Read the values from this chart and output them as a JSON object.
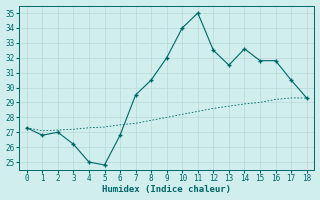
{
  "xlabel": "Humidex (Indice chaleur)",
  "x": [
    0,
    1,
    2,
    3,
    4,
    5,
    6,
    7,
    8,
    9,
    10,
    11,
    12,
    13,
    14,
    15,
    16,
    17,
    18
  ],
  "y_main": [
    27.3,
    26.8,
    27.0,
    26.2,
    25.0,
    24.8,
    26.8,
    29.5,
    30.5,
    32.0,
    34.0,
    35.0,
    32.5,
    31.5,
    32.6,
    31.8,
    31.8,
    30.5,
    29.3
  ],
  "y_trend": [
    27.3,
    27.1,
    27.15,
    27.2,
    27.3,
    27.35,
    27.5,
    27.6,
    27.8,
    28.0,
    28.2,
    28.4,
    28.6,
    28.75,
    28.9,
    29.0,
    29.2,
    29.3,
    29.3
  ],
  "line_color": "#006666",
  "bg_color": "#d0eeee",
  "grid_color": "#b8d8d8",
  "ylim": [
    24.5,
    35.5
  ],
  "yticks": [
    25,
    26,
    27,
    28,
    29,
    30,
    31,
    32,
    33,
    34,
    35
  ],
  "xlim": [
    -0.5,
    18.5
  ]
}
